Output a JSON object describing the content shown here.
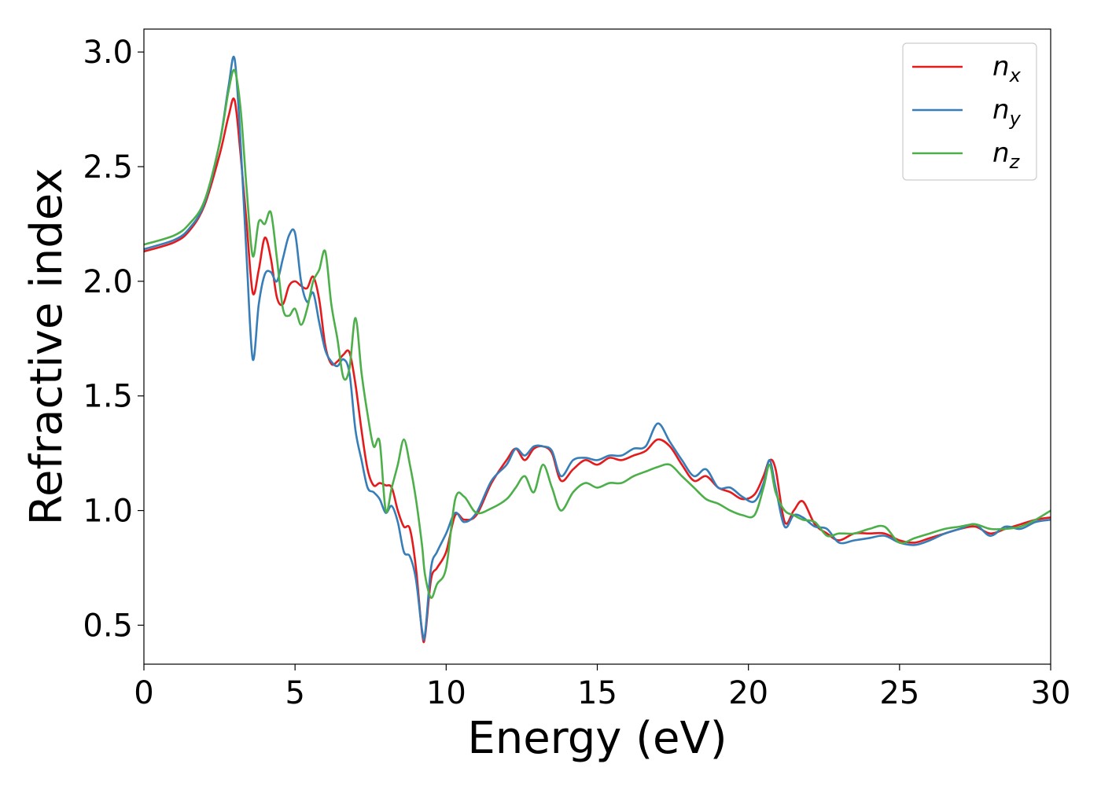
{
  "chart_data": {
    "type": "line",
    "xlabel": "Energy (eV)",
    "ylabel": "Refractive index",
    "xlim": [
      0,
      30
    ],
    "ylim": [
      0.33,
      3.1
    ],
    "xticks": [
      0,
      5,
      10,
      15,
      20,
      25,
      30
    ],
    "yticks": [
      0.5,
      1.0,
      1.5,
      2.0,
      2.5,
      3.0
    ],
    "xtick_labels": [
      "0",
      "5",
      "10",
      "15",
      "20",
      "25",
      "30"
    ],
    "ytick_labels": [
      "0.5",
      "1.0",
      "1.5",
      "2.0",
      "2.5",
      "3.0"
    ],
    "grid": false,
    "legend_position": "top-right",
    "series": [
      {
        "name": "n_x",
        "label_base": "n",
        "label_sub": "x",
        "color": "#e41a1c",
        "x": [
          0,
          1,
          1.5,
          2,
          2.5,
          2.8,
          3.0,
          3.2,
          3.4,
          3.6,
          3.8,
          4.0,
          4.2,
          4.4,
          4.6,
          4.8,
          5.0,
          5.2,
          5.4,
          5.6,
          5.8,
          6.0,
          6.2,
          6.4,
          6.6,
          6.8,
          7.0,
          7.2,
          7.4,
          7.6,
          7.8,
          8.0,
          8.2,
          8.4,
          8.6,
          8.8,
          9.0,
          9.2,
          9.3,
          9.5,
          9.7,
          10.0,
          10.3,
          10.6,
          11.0,
          11.5,
          12.0,
          12.3,
          12.6,
          12.9,
          13.2,
          13.5,
          13.8,
          14.2,
          14.6,
          15.0,
          15.4,
          15.8,
          16.2,
          16.6,
          17.0,
          17.4,
          17.8,
          18.2,
          18.6,
          19.0,
          19.4,
          19.8,
          20.2,
          20.5,
          20.7,
          20.9,
          21.2,
          21.5,
          21.8,
          22.2,
          22.6,
          23.0,
          23.5,
          24.0,
          24.5,
          25.0,
          25.5,
          26.0,
          26.5,
          27.0,
          27.5,
          28.0,
          28.5,
          29.0,
          29.5,
          30.0
        ],
        "y": [
          2.13,
          2.17,
          2.22,
          2.33,
          2.55,
          2.72,
          2.79,
          2.55,
          2.25,
          1.95,
          2.05,
          2.19,
          2.1,
          1.93,
          1.9,
          1.98,
          2.0,
          1.98,
          1.97,
          2.02,
          1.92,
          1.72,
          1.64,
          1.65,
          1.68,
          1.69,
          1.55,
          1.35,
          1.18,
          1.11,
          1.12,
          1.11,
          1.1,
          1.0,
          0.93,
          0.92,
          0.75,
          0.47,
          0.45,
          0.7,
          0.75,
          0.82,
          0.98,
          0.96,
          0.98,
          1.12,
          1.22,
          1.27,
          1.22,
          1.27,
          1.28,
          1.25,
          1.13,
          1.18,
          1.22,
          1.2,
          1.23,
          1.22,
          1.24,
          1.26,
          1.31,
          1.28,
          1.2,
          1.13,
          1.15,
          1.1,
          1.08,
          1.05,
          1.07,
          1.15,
          1.22,
          1.18,
          0.95,
          1.0,
          1.04,
          0.94,
          0.9,
          0.87,
          0.9,
          0.9,
          0.9,
          0.87,
          0.86,
          0.88,
          0.9,
          0.92,
          0.93,
          0.9,
          0.92,
          0.94,
          0.96,
          0.97
        ]
      },
      {
        "name": "n_y",
        "label_base": "n",
        "label_sub": "y",
        "color": "#377eb8",
        "x": [
          0,
          1,
          1.5,
          2,
          2.5,
          2.8,
          3.0,
          3.2,
          3.4,
          3.6,
          3.8,
          4.0,
          4.2,
          4.4,
          4.6,
          4.8,
          5.0,
          5.2,
          5.4,
          5.6,
          5.8,
          6.0,
          6.2,
          6.4,
          6.6,
          6.8,
          7.0,
          7.2,
          7.4,
          7.6,
          7.8,
          8.0,
          8.2,
          8.4,
          8.6,
          8.8,
          9.0,
          9.2,
          9.3,
          9.5,
          9.7,
          10.0,
          10.3,
          10.6,
          11.0,
          11.5,
          12.0,
          12.3,
          12.6,
          12.9,
          13.2,
          13.5,
          13.8,
          14.2,
          14.6,
          15.0,
          15.4,
          15.8,
          16.2,
          16.6,
          17.0,
          17.4,
          17.8,
          18.2,
          18.6,
          19.0,
          19.4,
          19.8,
          20.2,
          20.5,
          20.7,
          20.9,
          21.2,
          21.5,
          21.8,
          22.2,
          22.6,
          23.0,
          23.5,
          24.0,
          24.5,
          25.0,
          25.5,
          26.0,
          26.5,
          27.0,
          27.5,
          28.0,
          28.5,
          29.0,
          29.5,
          30.0
        ],
        "y": [
          2.14,
          2.18,
          2.23,
          2.34,
          2.6,
          2.85,
          2.97,
          2.6,
          2.1,
          1.66,
          1.9,
          2.03,
          2.04,
          2.0,
          2.1,
          2.2,
          2.21,
          2.0,
          1.91,
          1.95,
          1.82,
          1.7,
          1.65,
          1.63,
          1.66,
          1.6,
          1.35,
          1.22,
          1.1,
          1.08,
          1.05,
          0.99,
          1.02,
          0.95,
          0.82,
          0.8,
          0.7,
          0.48,
          0.46,
          0.75,
          0.82,
          0.9,
          0.99,
          0.95,
          0.99,
          1.13,
          1.2,
          1.27,
          1.24,
          1.28,
          1.28,
          1.26,
          1.15,
          1.22,
          1.23,
          1.22,
          1.24,
          1.24,
          1.27,
          1.28,
          1.38,
          1.3,
          1.22,
          1.15,
          1.18,
          1.1,
          1.1,
          1.06,
          1.04,
          1.12,
          1.22,
          1.1,
          0.93,
          0.98,
          0.97,
          0.93,
          0.92,
          0.86,
          0.87,
          0.88,
          0.89,
          0.86,
          0.85,
          0.87,
          0.9,
          0.92,
          0.94,
          0.89,
          0.93,
          0.92,
          0.95,
          0.96
        ]
      },
      {
        "name": "n_z",
        "label_base": "n",
        "label_sub": "z",
        "color": "#4daf4a",
        "x": [
          0,
          1,
          1.5,
          2,
          2.5,
          2.8,
          3.0,
          3.2,
          3.4,
          3.6,
          3.8,
          4.0,
          4.2,
          4.4,
          4.6,
          4.8,
          5.0,
          5.2,
          5.4,
          5.6,
          5.8,
          6.0,
          6.2,
          6.4,
          6.6,
          6.8,
          7.0,
          7.2,
          7.4,
          7.6,
          7.8,
          8.0,
          8.2,
          8.4,
          8.6,
          8.8,
          9.0,
          9.2,
          9.3,
          9.5,
          9.7,
          10.0,
          10.3,
          10.6,
          11.0,
          11.5,
          12.0,
          12.3,
          12.6,
          12.9,
          13.2,
          13.5,
          13.8,
          14.2,
          14.6,
          15.0,
          15.4,
          15.8,
          16.2,
          16.6,
          17.0,
          17.4,
          17.8,
          18.2,
          18.6,
          19.0,
          19.4,
          19.8,
          20.2,
          20.5,
          20.7,
          20.9,
          21.2,
          21.5,
          21.8,
          22.2,
          22.6,
          23.0,
          23.5,
          24.0,
          24.5,
          25.0,
          25.5,
          26.0,
          26.5,
          27.0,
          27.5,
          28.0,
          28.5,
          29.0,
          29.5,
          30.0
        ],
        "y": [
          2.16,
          2.2,
          2.25,
          2.35,
          2.6,
          2.83,
          2.92,
          2.75,
          2.4,
          2.11,
          2.26,
          2.25,
          2.3,
          2.1,
          1.88,
          1.85,
          1.88,
          1.81,
          1.88,
          2.0,
          2.05,
          2.13,
          1.9,
          1.75,
          1.58,
          1.62,
          1.84,
          1.6,
          1.42,
          1.28,
          1.3,
          1.0,
          1.1,
          1.2,
          1.31,
          1.2,
          1.05,
          0.85,
          0.72,
          0.62,
          0.68,
          0.75,
          1.05,
          1.06,
          0.99,
          1.01,
          1.05,
          1.1,
          1.15,
          1.08,
          1.2,
          1.1,
          1.0,
          1.08,
          1.12,
          1.1,
          1.12,
          1.12,
          1.15,
          1.17,
          1.19,
          1.2,
          1.15,
          1.1,
          1.05,
          1.03,
          1.0,
          0.98,
          0.98,
          1.1,
          1.2,
          1.08,
          1.0,
          0.98,
          0.96,
          0.95,
          0.89,
          0.9,
          0.9,
          0.92,
          0.93,
          0.86,
          0.88,
          0.9,
          0.92,
          0.93,
          0.94,
          0.92,
          0.92,
          0.93,
          0.96,
          1.0
        ]
      }
    ]
  }
}
